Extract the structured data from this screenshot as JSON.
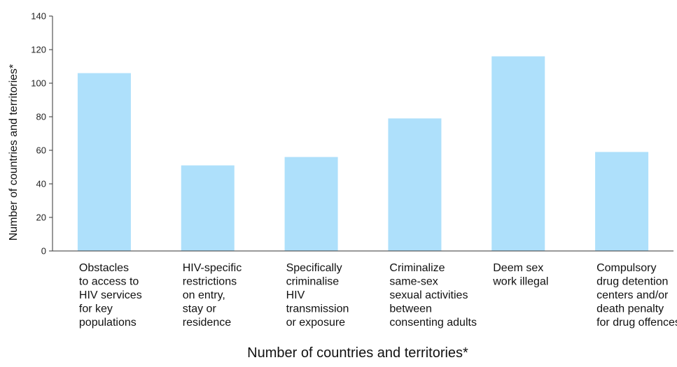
{
  "chart_data": {
    "type": "bar",
    "title": "Number of countries and territories*",
    "xlabel": "",
    "ylabel": "Number of countries and territories*",
    "ylim": [
      0,
      140
    ],
    "yticks": [
      0,
      20,
      40,
      60,
      80,
      100,
      120,
      140
    ],
    "categories": [
      [
        "Obstacles",
        "to access to",
        "HIV services",
        "for key",
        "populations"
      ],
      [
        "HIV-specific",
        "restrictions",
        "on entry,",
        "stay or",
        "residence"
      ],
      [
        "Specifically",
        "criminalise",
        "HIV",
        "transmission",
        "or exposure"
      ],
      [
        "Criminalize",
        "same-sex",
        "sexual activities",
        "between",
        "consenting adults"
      ],
      [
        "Deem sex",
        "work illegal"
      ],
      [
        "Compulsory",
        "drug detention",
        "centers and/or",
        "death penalty",
        "for drug offences"
      ]
    ],
    "values": [
      106,
      51,
      56,
      79,
      116,
      59
    ],
    "bar_color": "#aee0fb",
    "grid": false,
    "legend": "none"
  }
}
